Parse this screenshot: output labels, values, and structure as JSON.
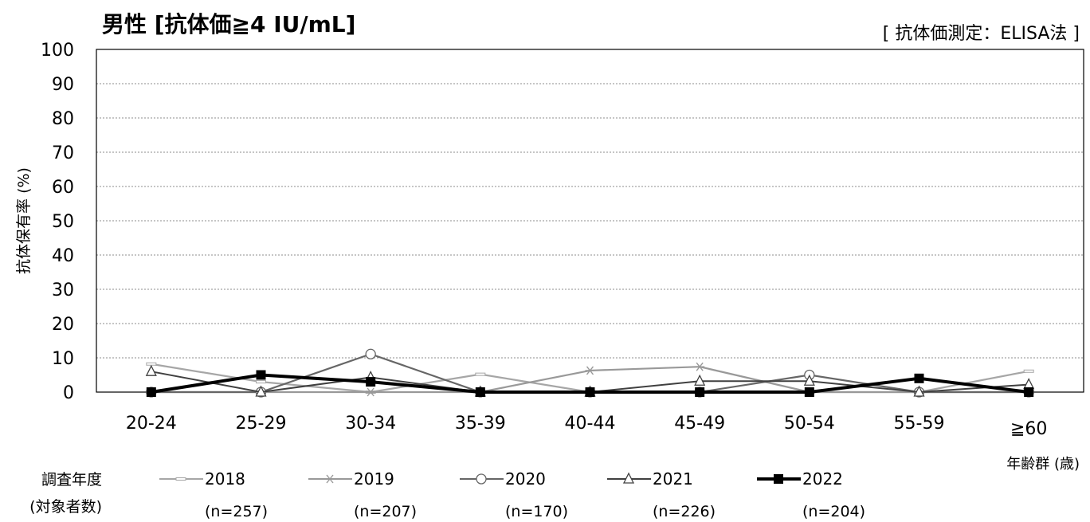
{
  "chart_data": {
    "type": "line",
    "title": "男性 [抗体価≧4 IU/mL]",
    "subtitle": "[ 抗体価測定：ELISA法 ]",
    "ylabel": "抗体保有率 (%)",
    "xlabel": "年齢群 (歳)",
    "ylim": [
      0,
      100
    ],
    "yticks": [
      0,
      10,
      20,
      30,
      40,
      50,
      60,
      70,
      80,
      90,
      100
    ],
    "grid": true,
    "legend_position": "bottom",
    "legend_title": "調査年度",
    "legend_subtitle": "(対象者数)",
    "categories": [
      "20-24",
      "25-29",
      "30-34",
      "35-39",
      "40-44",
      "45-49",
      "50-54",
      "55-59",
      "≧60"
    ],
    "series": [
      {
        "name": "2018",
        "n": "(n=257)",
        "color": "#a6a6a6",
        "marker": "dash",
        "values": [
          8.2,
          3.0,
          0.0,
          5.2,
          0.0,
          0.0,
          0.0,
          0.0,
          6.1
        ]
      },
      {
        "name": "2019",
        "n": "(n=207)",
        "color": "#999999",
        "marker": "star",
        "values": [
          0.0,
          0.0,
          0.0,
          0.0,
          6.3,
          7.4,
          0.0,
          0.0,
          0.0
        ]
      },
      {
        "name": "2020",
        "n": "(n=170)",
        "color": "#666666",
        "marker": "circle",
        "values": [
          0.0,
          0.0,
          11.1,
          0.0,
          0.0,
          0.0,
          5.0,
          0.0,
          0.0
        ]
      },
      {
        "name": "2021",
        "n": "(n=226)",
        "color": "#404040",
        "marker": "triangle",
        "values": [
          6.0,
          0.0,
          4.3,
          0.0,
          0.0,
          3.2,
          3.2,
          0.0,
          2.2
        ]
      },
      {
        "name": "2022",
        "n": "(n=204)",
        "color": "#000000",
        "marker": "square",
        "values": [
          0.0,
          5.0,
          3.0,
          0.0,
          0.0,
          0.0,
          0.0,
          4.0,
          0.0
        ]
      }
    ]
  }
}
